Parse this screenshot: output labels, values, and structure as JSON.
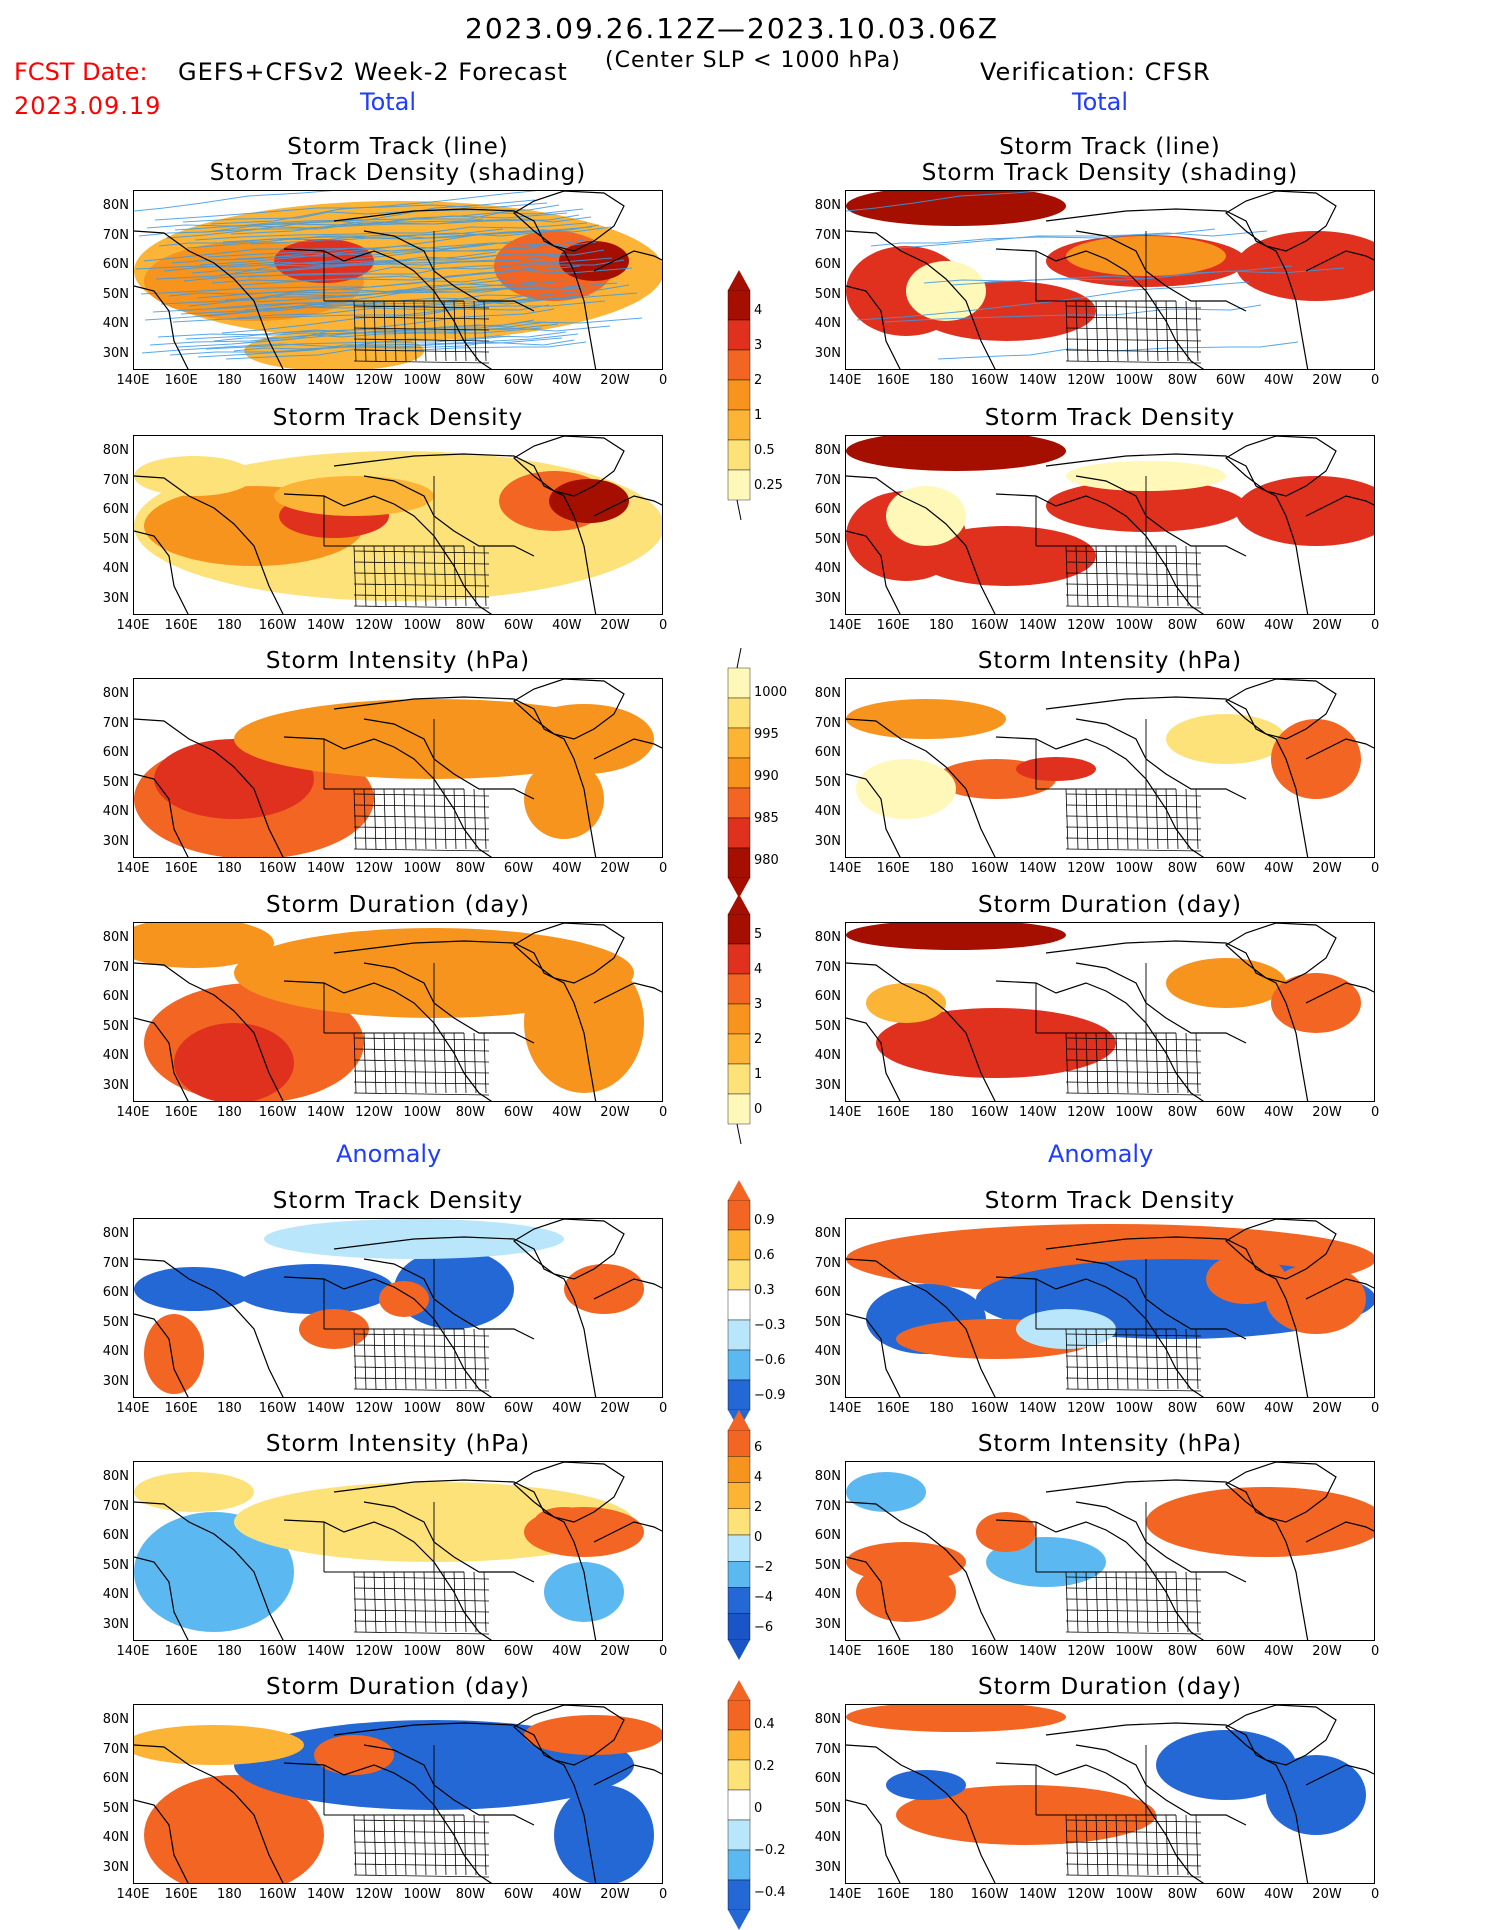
{
  "header": {
    "period": "2023.09.26.12Z—2023.10.03.06Z",
    "fcst_label": "FCST Date:",
    "fcst_date": "2023.09.19",
    "model": "GEFS+CFSv2 Week-2 Forecast",
    "criterion": "(Center SLP < 1000 hPa)",
    "verification": "Verification: CFSR",
    "total_label": "Total",
    "anomaly_label": "Anomaly"
  },
  "panel_titles": {
    "track_line": "Storm Track (line)",
    "track_shading": "Storm Track Density (shading)",
    "density": "Storm Track Density",
    "intensity": "Storm Intensity (hPa)",
    "duration": "Storm Duration (day)"
  },
  "lat_labels": [
    "80N",
    "70N",
    "60N",
    "50N",
    "40N",
    "30N"
  ],
  "lon_labels": [
    "140E",
    "160E",
    "180",
    "160W",
    "140W",
    "120W",
    "100W",
    "80W",
    "60W",
    "40W",
    "20W",
    "0"
  ],
  "colorbars": {
    "density_total": [
      "4",
      "3",
      "2",
      "1",
      "0.5",
      "0.25"
    ],
    "intensity_total": [
      "1000",
      "995",
      "990",
      "985",
      "980"
    ],
    "duration_total": [
      "5",
      "4",
      "3",
      "2",
      "1",
      "0"
    ],
    "density_anom": [
      "0.9",
      "0.6",
      "0.3",
      "−0.3",
      "−0.6",
      "−0.9"
    ],
    "intensity_anom": [
      "6",
      "4",
      "2",
      "0",
      "−2",
      "−4",
      "−6"
    ],
    "duration_anom": [
      "0.4",
      "0.2",
      "0",
      "−0.2",
      "−0.4"
    ]
  },
  "colors": {
    "warm": [
      "#fff8b8",
      "#fde27a",
      "#fcb437",
      "#f7941d",
      "#f26522",
      "#e0301e",
      "#a50f00"
    ],
    "anom_pos": [
      "#fde27a",
      "#fcb437",
      "#f26522"
    ],
    "anom_neg": [
      "#b9e6fb",
      "#5cb8f0",
      "#2468d6"
    ],
    "title_red": "#ff0000",
    "label_blue": "#1f3cff",
    "track_line": "#3a9ae8"
  }
}
